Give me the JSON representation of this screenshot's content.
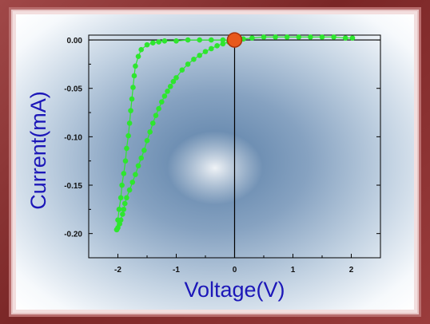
{
  "chart_data": {
    "type": "scatter",
    "title": "",
    "xlabel": "Voltage(V)",
    "ylabel": "Current(mA)",
    "xlim": [
      -2.5,
      2.5
    ],
    "ylim": [
      -0.225,
      0.005
    ],
    "x_ticks": [
      -2,
      -1,
      0,
      1,
      2
    ],
    "x_tick_labels": [
      "-2",
      "-1",
      "0",
      "1",
      "2"
    ],
    "y_ticks": [
      0.0,
      -0.05,
      -0.1,
      -0.15,
      -0.2
    ],
    "y_tick_labels": [
      "0.00",
      "-0.05",
      "-0.10",
      "-0.15",
      "-0.20"
    ],
    "grid": false,
    "colors": {
      "series": "#2ee62e",
      "marker_origin": "#e8581c",
      "axes": "#000000"
    },
    "origin_marker": {
      "x": 0.0,
      "y": 0.0
    },
    "series": [
      {
        "x": [
          2.02,
          1.9,
          1.7,
          1.5,
          1.3,
          1.1,
          0.9,
          0.7,
          0.5,
          0.3,
          0.15,
          0.0,
          -0.1,
          -0.2,
          -0.3,
          -0.4,
          -0.5,
          -0.6,
          -0.7,
          -0.8,
          -0.9,
          -1.0,
          -1.05,
          -1.1,
          -1.15,
          -1.2,
          -1.25,
          -1.3,
          -1.35,
          -1.4,
          -1.45,
          -1.5,
          -1.55,
          -1.6,
          -1.65,
          -1.7,
          -1.75,
          -1.8,
          -1.85,
          -1.88,
          -1.9,
          -1.92,
          -1.95,
          -1.97,
          -2.0,
          -2.02
        ],
        "y": [
          0.002,
          0.002,
          0.003,
          0.003,
          0.003,
          0.003,
          0.003,
          0.003,
          0.003,
          0.002,
          0.001,
          0.0,
          -0.002,
          -0.004,
          -0.006,
          -0.009,
          -0.012,
          -0.016,
          -0.02,
          -0.025,
          -0.031,
          -0.039,
          -0.043,
          -0.048,
          -0.053,
          -0.058,
          -0.064,
          -0.071,
          -0.078,
          -0.086,
          -0.095,
          -0.104,
          -0.114,
          -0.122,
          -0.13,
          -0.139,
          -0.147,
          -0.155,
          -0.163,
          -0.169,
          -0.175,
          -0.18,
          -0.186,
          -0.19,
          -0.194,
          -0.196
        ]
      },
      {
        "x": [
          -2.02,
          -2.0,
          -1.98,
          -1.95,
          -1.93,
          -1.9,
          -1.87,
          -1.85,
          -1.82,
          -1.8,
          -1.78,
          -1.76,
          -1.74,
          -1.72,
          -1.7,
          -1.65,
          -1.6,
          -1.5,
          -1.4,
          -1.3,
          -1.2,
          -1.0,
          -0.8,
          -0.6,
          -0.4,
          -0.2,
          0.0
        ],
        "y": [
          -0.196,
          -0.186,
          -0.175,
          -0.163,
          -0.15,
          -0.138,
          -0.125,
          -0.112,
          -0.099,
          -0.086,
          -0.073,
          -0.061,
          -0.049,
          -0.037,
          -0.027,
          -0.017,
          -0.01,
          -0.005,
          -0.003,
          -0.002,
          -0.001,
          -0.001,
          0.0,
          0.0,
          0.0,
          0.0,
          0.0
        ]
      }
    ]
  }
}
